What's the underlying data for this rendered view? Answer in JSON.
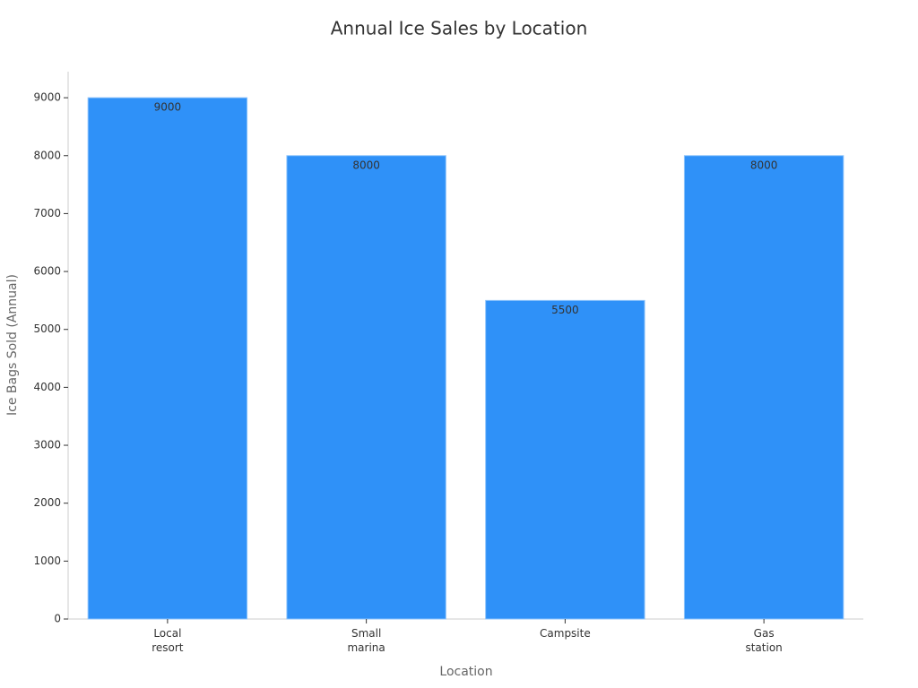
{
  "chart_data": {
    "type": "bar",
    "title": "Annual Ice Sales by Location",
    "x_label": "Location",
    "y_label": "Ice Bags Sold (Annual)",
    "categories": [
      "Local resort",
      "Small marina",
      "Campsite",
      "Gas station"
    ],
    "values": [
      9000,
      8000,
      5500,
      8000
    ],
    "color": "#2f91f8",
    "ylim": [
      0,
      9450
    ],
    "yticks": [
      0,
      1000,
      2000,
      3000,
      4000,
      5000,
      6000,
      7000,
      8000,
      9000
    ],
    "grid": false
  }
}
